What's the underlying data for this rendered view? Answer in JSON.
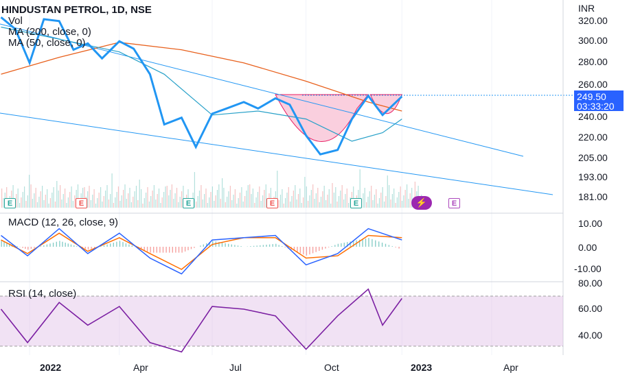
{
  "title": "HINDUSTAN PETROL, 1D, NSE",
  "legend": {
    "vol": "Vol",
    "ma200": "MA (200, close, 0)",
    "ma50": "MA (50, close, 0)",
    "macd": "MACD (12, 26, close, 9)",
    "rsi": "RSI (14, close)"
  },
  "currency": "INR",
  "last_price": {
    "value": "249.50",
    "countdown": "03:33:20"
  },
  "price_axis": [
    "320.00",
    "300.00",
    "280.00",
    "260.00",
    "240.00",
    "220.00",
    "205.00",
    "193.00",
    "181.00"
  ],
  "macd_axis": [
    "10.00",
    "0.00",
    "-10.00"
  ],
  "rsi_axis": [
    "80.00",
    "60.00",
    "40.00"
  ],
  "time_axis": [
    "2022",
    "Apr",
    "Jul",
    "Oct",
    "2023",
    "Apr"
  ],
  "events": {
    "e_label": "E",
    "flash_icon": "lightning-icon"
  },
  "colors": {
    "price": "#2196f3",
    "ma200": "#e8601c",
    "ma50": "#26a0c8",
    "macd": "#2962ff",
    "signal": "#ff6d00",
    "rsi": "#7b1fa2",
    "pattern": "#f8bbd0",
    "trendline": "#2196f3"
  },
  "chart_data": {
    "type": "line",
    "log_scale": true,
    "x_range": [
      "2021-12-05",
      "2023-06-10"
    ],
    "price": {
      "name": "HINDUSTAN PETROL",
      "x": [
        "2021-12-06",
        "2021-12-20",
        "2022-01-03",
        "2022-01-17",
        "2022-02-01",
        "2022-02-15",
        "2022-03-01",
        "2022-03-15",
        "2022-04-01",
        "2022-04-15",
        "2022-05-01",
        "2022-05-15",
        "2022-06-01",
        "2022-06-15",
        "2022-07-01",
        "2022-07-15",
        "2022-08-01",
        "2022-08-15",
        "2022-09-01",
        "2022-09-15",
        "2022-10-01",
        "2022-10-15",
        "2022-11-01",
        "2022-11-15",
        "2022-12-01",
        "2022-12-15",
        "2023-01-03"
      ],
      "values": [
        322,
        310,
        278,
        320,
        318,
        290,
        296,
        282,
        298,
        291,
        268,
        228,
        233,
        212,
        236,
        240,
        245,
        240,
        248,
        243,
        220,
        207,
        210,
        232,
        250,
        235,
        249.5
      ]
    },
    "ma200": {
      "name": "MA (200, close, 0)",
      "x": [
        "2021-12-06",
        "2022-02-01",
        "2022-04-01",
        "2022-06-01",
        "2022-08-01",
        "2022-10-01",
        "2022-12-01",
        "2023-01-03"
      ],
      "values": [
        268,
        283,
        297,
        290,
        278,
        262,
        245,
        238
      ]
    },
    "ma50": {
      "name": "MA (50, close, 0)",
      "x": [
        "2021-12-06",
        "2022-02-01",
        "2022-04-01",
        "2022-05-15",
        "2022-07-01",
        "2022-08-15",
        "2022-10-01",
        "2022-11-15",
        "2022-12-15",
        "2023-01-03"
      ],
      "values": [
        312,
        300,
        288,
        268,
        235,
        238,
        232,
        216,
        222,
        232
      ]
    },
    "macd": {
      "x": [
        "2021-12-06",
        "2022-01-01",
        "2022-02-01",
        "2022-03-01",
        "2022-04-01",
        "2022-05-01",
        "2022-06-01",
        "2022-07-01",
        "2022-08-01",
        "2022-09-01",
        "2022-10-01",
        "2022-11-01",
        "2022-12-01",
        "2023-01-03"
      ],
      "macd": [
        5,
        -4,
        8,
        -3,
        6,
        -5,
        -12,
        3,
        4,
        5,
        -8,
        -3,
        8,
        3
      ],
      "signal": [
        3,
        -3,
        6,
        -2,
        4,
        -3,
        -10,
        1,
        4,
        4,
        -5,
        -4,
        5,
        4
      ]
    },
    "rsi": {
      "x": [
        "2021-12-06",
        "2022-01-01",
        "2022-02-01",
        "2022-03-01",
        "2022-04-01",
        "2022-05-01",
        "2022-06-01",
        "2022-07-01",
        "2022-08-01",
        "2022-09-01",
        "2022-10-01",
        "2022-11-01",
        "2022-12-01",
        "2022-12-15",
        "2023-01-03"
      ],
      "values": [
        60,
        35,
        65,
        48,
        62,
        35,
        28,
        62,
        60,
        55,
        30,
        55,
        75,
        48,
        68
      ],
      "band": [
        30,
        70
      ]
    }
  }
}
